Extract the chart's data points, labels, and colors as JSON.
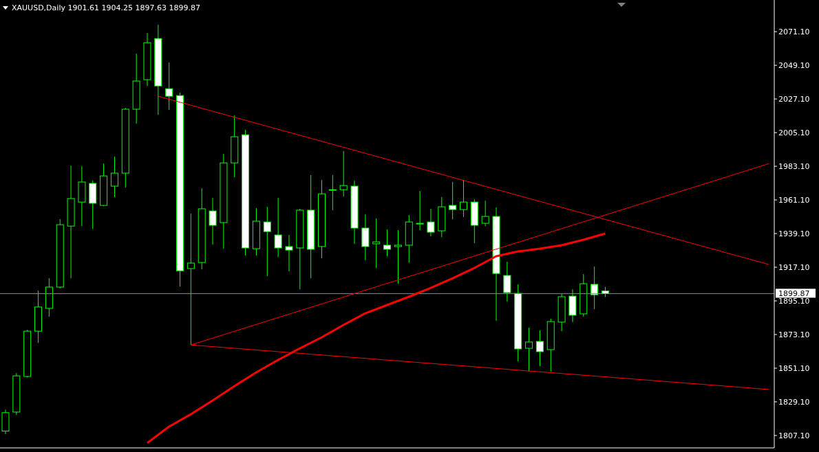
{
  "chart_data": {
    "type": "candlestick",
    "title": "XAUUSD,Daily 1901.61 1904.25 1897.63 1899.87",
    "color": "#00ff00",
    "tick_labels": "y",
    "marker": "none",
    "categories": [
      null,
      null,
      null,
      null,
      null,
      null,
      null,
      null,
      null,
      null,
      null,
      null,
      null,
      null,
      null,
      null,
      null,
      null,
      null,
      null,
      null,
      null,
      null,
      null,
      null,
      null,
      null,
      null,
      null,
      null,
      null,
      null,
      null,
      null,
      null,
      null,
      null,
      null,
      null,
      null,
      null,
      null,
      null,
      null,
      null,
      null,
      null,
      null,
      null,
      null,
      null,
      null,
      null,
      null,
      null,
      null,
      null,
      null,
      null,
      null,
      null,
      null,
      null,
      null,
      null,
      null,
      null,
      null,
      null,
      null,
      null
    ],
    "ohlc": [
      [
        1810,
        1824,
        1808,
        1822
      ],
      [
        1822.4,
        1847.9,
        1820.6,
        1846.1
      ],
      [
        1845.7,
        1876.2,
        1845,
        1875.3
      ],
      [
        1875.3,
        1901.8,
        1867.7,
        1891.1
      ],
      [
        1890.2,
        1909.9,
        1884.8,
        1904.1
      ],
      [
        1904.1,
        1948.5,
        1903.2,
        1944.9
      ],
      [
        1944,
        1983.5,
        1909.9,
        1962
      ],
      [
        1959.7,
        1983.1,
        1944,
        1972.8
      ],
      [
        1971.9,
        1973.7,
        1942.2,
        1958.9
      ],
      [
        1957.5,
        1984.9,
        1957,
        1976.8
      ],
      [
        1970.1,
        1989.4,
        1962.9,
        1978.6
      ],
      [
        1978.6,
        2021.3,
        1969.2,
        2020.4
      ],
      [
        2020.4,
        2056.7,
        2010.9,
        2038.8
      ],
      [
        2039.7,
        2070.2,
        2035.6,
        2063.9
      ],
      [
        2066.6,
        2075.6,
        2016.8,
        2035.6
      ],
      [
        2033.8,
        2050.9,
        2019.9,
        2028.9
      ],
      [
        2029.3,
        2031.1,
        1904.5,
        1914.8
      ],
      [
        1916.2,
        1952.1,
        1866.3,
        1919.8
      ],
      [
        1920.2,
        1968.7,
        1915.7,
        1955.3
      ],
      [
        1953.9,
        1962.4,
        1931.9,
        1944.5
      ],
      [
        1946.3,
        1991.2,
        1929.2,
        1985.3
      ],
      [
        1985.3,
        2016.3,
        1975.9,
        2002.4
      ],
      [
        2003.7,
        2006.9,
        1924.7,
        1929.7
      ],
      [
        1929.2,
        1955.7,
        1924.7,
        1947.2
      ],
      [
        1946.7,
        1956.6,
        1911.3,
        1940.4
      ],
      [
        1938.2,
        1962.4,
        1923.8,
        1929.7
      ],
      [
        1930.6,
        1938.2,
        1914.4,
        1928.3
      ],
      [
        1929.7,
        1955.3,
        1902.7,
        1954.4
      ],
      [
        1954.4,
        1977.3,
        1909.9,
        1928.8
      ],
      [
        1930.6,
        1974.1,
        1922.9,
        1965.1
      ],
      [
        1967.4,
        1977.3,
        1954.4,
        1967.8
      ],
      [
        1967.8,
        1993,
        1963.3,
        1970.5
      ],
      [
        1970.1,
        1973.7,
        1932.4,
        1942.7
      ],
      [
        1942.7,
        1951.7,
        1921.6,
        1930.6
      ],
      [
        1932.4,
        1949,
        1916.6,
        1933.7
      ],
      [
        1931.5,
        1941.8,
        1924.3,
        1928.8
      ],
      [
        1930.6,
        1941.3,
        1906.3,
        1931.5
      ],
      [
        1931.5,
        1951.2,
        1920.2,
        1946.7
      ],
      [
        1945.4,
        1966.9,
        1941.3,
        1945.8
      ],
      [
        1946.7,
        1955.3,
        1937.3,
        1940
      ],
      [
        1940.9,
        1962.9,
        1936.8,
        1956.6
      ],
      [
        1957.5,
        1972.8,
        1948.5,
        1954.8
      ],
      [
        1954.8,
        1974.1,
        1949.9,
        1959.7
      ],
      [
        1959.7,
        1961.5,
        1932.8,
        1944.5
      ],
      [
        1945.8,
        1960.6,
        1944,
        1950.3
      ],
      [
        1950.3,
        1956.2,
        1882.1,
        1913
      ],
      [
        1911.7,
        1920.7,
        1894.6,
        1900.5
      ],
      [
        1900,
        1905.9,
        1855.6,
        1863.7
      ],
      [
        1864.1,
        1877.6,
        1848.9,
        1868.2
      ],
      [
        1868.6,
        1875.8,
        1852.4,
        1861.9
      ],
      [
        1863.2,
        1883.4,
        1848.9,
        1881.6
      ],
      [
        1881.2,
        1899.6,
        1875.3,
        1897.8
      ],
      [
        1898.2,
        1902.7,
        1881.2,
        1885.7
      ],
      [
        1886.6,
        1912.6,
        1884.8,
        1906.3
      ],
      [
        1905.9,
        1917.5,
        1889.7,
        1899.1
      ],
      [
        1901.61,
        1904.25,
        1897.63,
        1899.87
      ],
      null,
      null,
      null,
      null,
      null,
      null,
      null,
      null,
      null,
      null,
      null,
      null,
      null,
      null,
      null
    ],
    "series": [
      {
        "type": "line",
        "color": "#ff0000",
        "values": [
          null,
          null,
          null,
          null,
          null,
          null,
          null,
          null,
          null,
          null,
          null,
          null,
          null,
          1802.2,
          null,
          1812.9,
          null,
          1821,
          null,
          1830,
          null,
          1839.4,
          null,
          1848.4,
          null,
          1856.5,
          null,
          1864.1,
          null,
          1871.3,
          null,
          1879.4,
          null,
          1887,
          null,
          1892.4,
          null,
          1897.8,
          null,
          1903.6,
          null,
          1909.9,
          null,
          1916.6,
          null,
          1924.3,
          null,
          1927.4,
          null,
          1929.2,
          null,
          1931.5,
          null,
          1935.1,
          null,
          1939.1,
          null,
          null,
          null,
          null,
          null,
          null,
          null,
          null,
          null,
          null,
          null,
          null,
          null,
          null,
          null
        ]
      },
      {
        "type": "line",
        "color": "#ff0000",
        "values": [
          null,
          null,
          null,
          null,
          null,
          null,
          null,
          null,
          null,
          null,
          null,
          null,
          null,
          null,
          2028.9,
          null,
          null,
          null,
          null,
          null,
          null,
          null,
          null,
          null,
          null,
          null,
          null,
          null,
          null,
          null,
          null,
          null,
          null,
          null,
          null,
          null,
          null,
          null,
          null,
          null,
          null,
          null,
          null,
          null,
          null,
          null,
          null,
          null,
          null,
          null,
          null,
          null,
          null,
          null,
          null,
          null,
          null,
          null,
          null,
          null,
          null,
          null,
          null,
          null,
          null,
          null,
          null,
          null,
          null,
          null,
          1918.9
        ]
      },
      {
        "type": "line",
        "color": "#ff0000",
        "values": [
          null,
          null,
          null,
          null,
          null,
          null,
          null,
          null,
          null,
          null,
          null,
          null,
          null,
          null,
          null,
          null,
          null,
          1866.3,
          null,
          null,
          null,
          null,
          null,
          null,
          null,
          null,
          null,
          null,
          null,
          null,
          null,
          null,
          null,
          null,
          null,
          null,
          null,
          null,
          null,
          null,
          null,
          null,
          null,
          null,
          null,
          null,
          null,
          null,
          null,
          null,
          null,
          null,
          null,
          null,
          null,
          null,
          null,
          null,
          null,
          null,
          null,
          null,
          null,
          null,
          null,
          null,
          null,
          null,
          null,
          null,
          1984.8
        ]
      },
      {
        "type": "line",
        "color": "#ff0000",
        "values": [
          null,
          null,
          null,
          null,
          null,
          null,
          null,
          null,
          null,
          null,
          null,
          null,
          null,
          null,
          null,
          null,
          null,
          1866.3,
          null,
          null,
          null,
          null,
          null,
          null,
          null,
          null,
          null,
          null,
          null,
          null,
          null,
          null,
          null,
          null,
          null,
          null,
          null,
          null,
          null,
          null,
          null,
          null,
          null,
          null,
          null,
          null,
          null,
          null,
          null,
          null,
          null,
          null,
          null,
          null,
          null,
          null,
          null,
          null,
          null,
          null,
          null,
          null,
          null,
          null,
          null,
          null,
          null,
          null,
          null,
          null,
          1837.2
        ]
      }
    ],
    "ylim": [
      1799,
      2091.8
    ],
    "yticks": [
      {
        "value": 2071.1,
        "label": "2071.10"
      },
      {
        "value": 2049.1,
        "label": "2049.10"
      },
      {
        "value": 2027.1,
        "label": "2027.10"
      },
      {
        "value": 2005.1,
        "label": "2005.10"
      },
      {
        "value": 1983.1,
        "label": "1983.10"
      },
      {
        "value": 1961.1,
        "label": "1961.10"
      },
      {
        "value": 1939.1,
        "label": "1939.10"
      },
      {
        "value": 1917.1,
        "label": "1917.10"
      },
      {
        "value": 1895.1,
        "label": "1895.10"
      },
      {
        "value": 1873.1,
        "label": "1873.10"
      },
      {
        "value": 1851.1,
        "label": "1851.10"
      },
      {
        "value": 1829.1,
        "label": "1829.10"
      },
      {
        "value": 1807.1,
        "label": "1807.10"
      }
    ],
    "ref_lines": [
      {
        "axis": "y",
        "value": 1899.87,
        "label": "1899.87",
        "color": "#8090a0"
      }
    ]
  }
}
